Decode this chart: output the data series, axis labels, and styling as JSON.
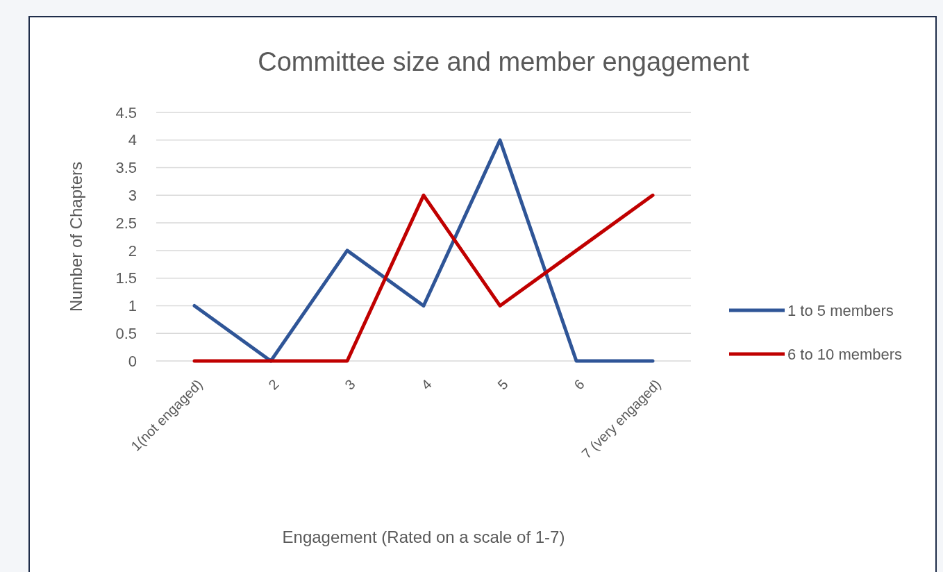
{
  "chart_data": {
    "type": "line",
    "title": "Committee size and member engagement",
    "xlabel": "Engagement  (Rated on a scale of 1-7)",
    "ylabel": "Number  of Chapters",
    "categories": [
      "1(not engaged)",
      "2",
      "3",
      "4",
      "5",
      "6",
      "7 (very engaged)"
    ],
    "series": [
      {
        "name": "1 to 5 members",
        "color": "#2f5597",
        "values": [
          1,
          0,
          2,
          1,
          4,
          0,
          0
        ]
      },
      {
        "name": "6 to 10 members",
        "color": "#c00000",
        "values": [
          0,
          0,
          0,
          3,
          1,
          2,
          3
        ]
      }
    ],
    "ylim": [
      0,
      4.5
    ],
    "yticks": [
      0,
      0.5,
      1,
      1.5,
      2,
      2.5,
      3,
      3.5,
      4,
      4.5
    ],
    "grid": "y",
    "legend": "right",
    "marker": "none",
    "line_style": "solid"
  }
}
